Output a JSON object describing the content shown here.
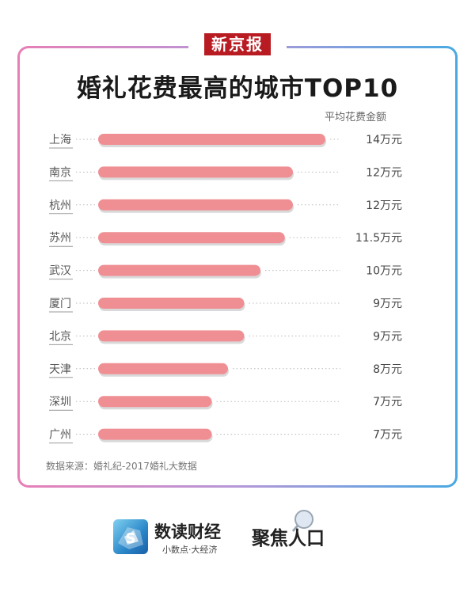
{
  "masthead": "新京报",
  "title": "婚礼花费最高的城市TOP10",
  "metric_label": "平均花费金额",
  "source": "数据来源：婚礼纪-2017婚礼大数据",
  "brand": {
    "name": "数读财经",
    "slogan": "小数点·大经济",
    "seal_text": "聚焦人口"
  },
  "colors": {
    "bar": "#ef8f94",
    "bar_shadow": "#d9d9d9",
    "frame_left": "#e77fb6",
    "frame_right": "#49a9e2",
    "masthead_red": "#b81c22"
  },
  "chart_data": {
    "type": "bar",
    "orientation": "horizontal",
    "categories": [
      "上海",
      "南京",
      "杭州",
      "苏州",
      "武汉",
      "厦门",
      "北京",
      "天津",
      "深圳",
      "广州"
    ],
    "values": [
      14,
      12,
      12,
      11.5,
      10,
      9,
      9,
      8,
      7,
      7
    ],
    "value_labels": [
      "14万元",
      "12万元",
      "12万元",
      "11.5万元",
      "10万元",
      "9万元",
      "9万元",
      "8万元",
      "7万元",
      "7万元"
    ],
    "unit": "万元",
    "title": "婚礼花费最高的城市TOP10",
    "xlabel": "",
    "ylabel": "",
    "xlim": [
      0,
      14
    ],
    "grid": false,
    "legend": "none"
  }
}
